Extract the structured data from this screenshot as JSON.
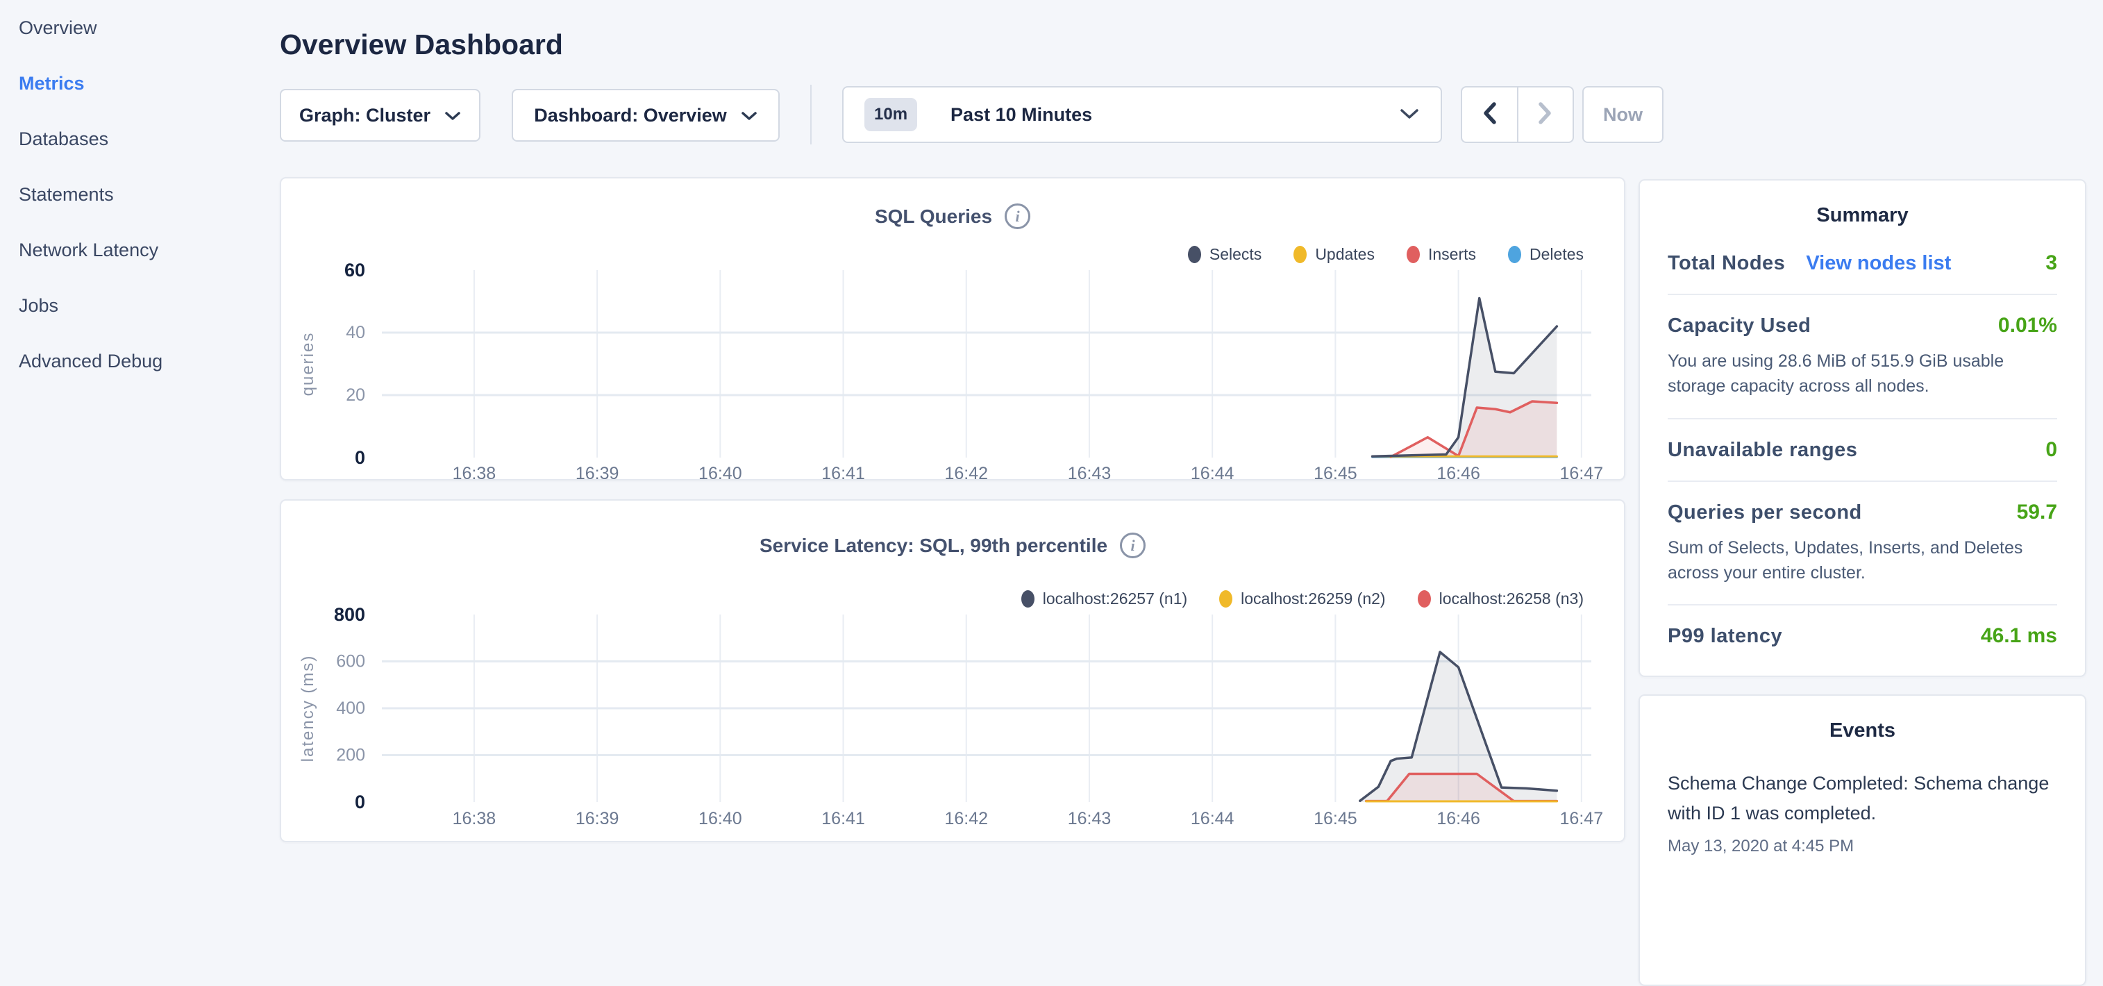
{
  "header": {
    "title": "Overview Dashboard"
  },
  "sidebar": {
    "items": [
      {
        "label": "Overview",
        "active": false
      },
      {
        "label": "Metrics",
        "active": true
      },
      {
        "label": "Databases",
        "active": false
      },
      {
        "label": "Statements",
        "active": false
      },
      {
        "label": "Network Latency",
        "active": false
      },
      {
        "label": "Jobs",
        "active": false
      },
      {
        "label": "Advanced Debug",
        "active": false
      }
    ],
    "active_color": "#3b7cf0"
  },
  "toolbar": {
    "graph_dropdown": "Graph: Cluster",
    "dashboard_dropdown": "Dashboard: Overview",
    "time_badge": "10m",
    "time_label": "Past 10 Minutes",
    "prev_enabled": true,
    "next_enabled": false,
    "now_label": "Now"
  },
  "chart_data": [
    {
      "type": "area",
      "title": "SQL Queries",
      "ylabel": "queries",
      "ylim": [
        0,
        60
      ],
      "yticks": [
        0,
        20,
        40,
        60
      ],
      "grid_yticks": [
        20,
        40
      ],
      "x_tick_labels": [
        "16:38",
        "16:39",
        "16:40",
        "16:41",
        "16:42",
        "16:43",
        "16:44",
        "16:45",
        "16:46",
        "16:47"
      ],
      "x_domain": [
        37.25,
        47.08
      ],
      "legend_position": "top-right",
      "grid": true,
      "series": [
        {
          "name": "Selects",
          "color": "#475066",
          "fill": "rgba(71,80,102,0.10)",
          "points": [
            [
              45.3,
              0.4
            ],
            [
              45.9,
              1
            ],
            [
              46.0,
              6.5
            ],
            [
              46.17,
              51
            ],
            [
              46.3,
              27.5
            ],
            [
              46.45,
              27
            ],
            [
              46.8,
              42
            ]
          ]
        },
        {
          "name": "Updates",
          "color": "#f0b929",
          "width": 3,
          "points": [
            [
              45.3,
              0.4
            ],
            [
              46.8,
              0.4
            ]
          ]
        },
        {
          "name": "Inserts",
          "color": "#e05f5f",
          "fill": "rgba(224,95,95,0.10)",
          "points": [
            [
              45.45,
              0.2
            ],
            [
              45.75,
              6.5
            ],
            [
              46.0,
              0.5
            ],
            [
              46.15,
              16
            ],
            [
              46.3,
              15.5
            ],
            [
              46.42,
              14.5
            ],
            [
              46.6,
              18
            ],
            [
              46.8,
              17.5
            ]
          ]
        },
        {
          "name": "Deletes",
          "color": "#4ea4df",
          "width": 3,
          "points": [
            [
              45.3,
              0.2
            ],
            [
              46.8,
              0.2
            ]
          ]
        }
      ]
    },
    {
      "type": "area",
      "title": "Service Latency: SQL, 99th percentile",
      "ylabel": "latency (ms)",
      "ylim": [
        0,
        800
      ],
      "yticks": [
        0,
        200,
        400,
        600,
        800
      ],
      "grid_yticks": [
        200,
        400,
        600
      ],
      "x_tick_labels": [
        "16:38",
        "16:39",
        "16:40",
        "16:41",
        "16:42",
        "16:43",
        "16:44",
        "16:45",
        "16:46",
        "16:47"
      ],
      "x_domain": [
        37.25,
        47.08
      ],
      "legend_position": "top-right",
      "grid": true,
      "series": [
        {
          "name": "localhost:26257 (n1)",
          "color": "#475066",
          "fill": "rgba(71,80,102,0.10)",
          "points": [
            [
              45.2,
              5
            ],
            [
              45.35,
              65
            ],
            [
              45.45,
              175
            ],
            [
              45.5,
              185
            ],
            [
              45.62,
              190
            ],
            [
              45.85,
              640
            ],
            [
              46.0,
              575
            ],
            [
              46.35,
              62
            ],
            [
              46.55,
              58
            ],
            [
              46.8,
              48
            ]
          ]
        },
        {
          "name": "localhost:26259 (n2)",
          "color": "#f0b929",
          "width": 3,
          "points": [
            [
              45.25,
              3
            ],
            [
              46.8,
              3
            ]
          ]
        },
        {
          "name": "localhost:26258 (n3)",
          "color": "#e05f5f",
          "fill": "rgba(224,95,95,0.10)",
          "points": [
            [
              45.25,
              4
            ],
            [
              45.42,
              4
            ],
            [
              45.6,
              120
            ],
            [
              46.15,
              120
            ],
            [
              46.45,
              4
            ],
            [
              46.8,
              4
            ]
          ]
        }
      ]
    }
  ],
  "summary": {
    "title": "Summary",
    "value_color": "#47a417",
    "rows": [
      {
        "label": "Total Nodes",
        "link": "View nodes list",
        "value": "3"
      },
      {
        "label": "Capacity Used",
        "value": "0.01%",
        "description": "You are using 28.6 MiB of 515.9 GiB usable storage capacity across all nodes."
      },
      {
        "label": "Unavailable ranges",
        "value": "0"
      },
      {
        "label": "Queries per second",
        "value": "59.7",
        "description": "Sum of Selects, Updates, Inserts, and Deletes across your entire cluster."
      },
      {
        "label": "P99 latency",
        "value": "46.1 ms"
      }
    ]
  },
  "events": {
    "title": "Events",
    "items": [
      {
        "message": "Schema Change Completed: Schema change with ID 1 was completed.",
        "timestamp": "May 13, 2020 at 4:45 PM"
      }
    ]
  }
}
